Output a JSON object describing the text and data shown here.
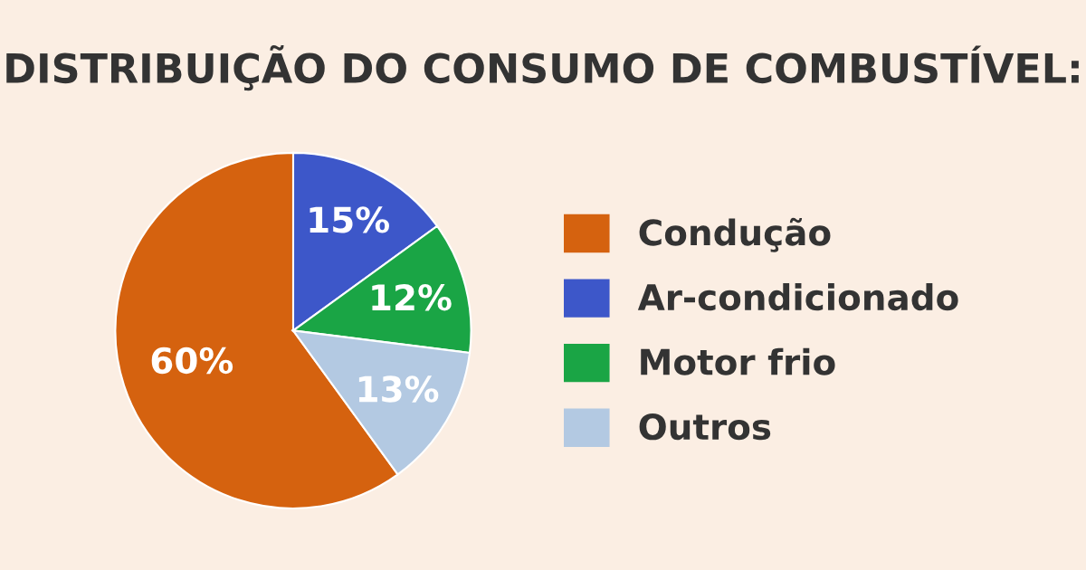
{
  "chart_data": {
    "type": "pie",
    "title": "DISTRIBUIÇÃO DO CONSUMO DE COMBUSTÍVEL:",
    "categories": [
      "Condução",
      "Ar-condicionado",
      "Motor frio",
      "Outros"
    ],
    "values": [
      60,
      15,
      12,
      13
    ],
    "colors": [
      "#d5620f",
      "#3d57c9",
      "#1aa545",
      "#b3c9e2"
    ],
    "value_labels": [
      "60%",
      "15%",
      "12%",
      "13%"
    ],
    "legend": "right"
  }
}
